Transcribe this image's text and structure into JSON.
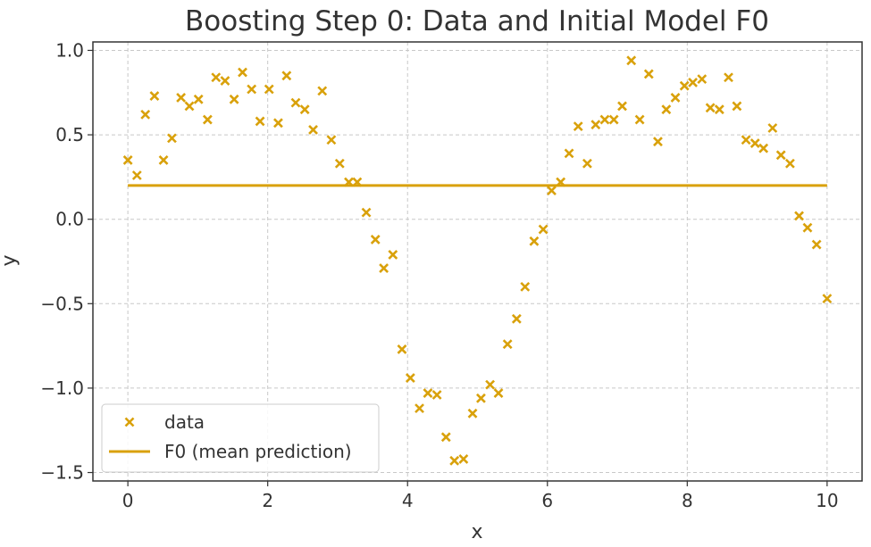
{
  "chart_data": {
    "type": "scatter",
    "title": "Boosting Step 0: Data and Initial Model F0",
    "xlabel": "x",
    "ylabel": "y",
    "xlim": [
      -0.5,
      10.5
    ],
    "ylim": [
      -1.55,
      1.05
    ],
    "xticks": [
      0,
      2,
      4,
      6,
      8,
      10
    ],
    "yticks": [
      1.0,
      0.5,
      0.0,
      -0.5,
      -1.0,
      -1.5
    ],
    "xtick_labels": [
      "0",
      "2",
      "4",
      "6",
      "8",
      "10"
    ],
    "ytick_labels": [
      "1.0",
      "0.5",
      "0.0",
      "−0.5",
      "−1.0",
      "−1.5"
    ],
    "grid": true,
    "legend_position": "lower-left",
    "series": [
      {
        "name": "data",
        "type": "scatter",
        "marker": "x",
        "color": "#d9a10b",
        "x": [
          0.0,
          0.13,
          0.25,
          0.38,
          0.51,
          0.63,
          0.76,
          0.88,
          1.01,
          1.14,
          1.26,
          1.39,
          1.52,
          1.64,
          1.77,
          1.89,
          2.02,
          2.15,
          2.27,
          2.4,
          2.53,
          2.65,
          2.78,
          2.91,
          3.03,
          3.16,
          3.28,
          3.41,
          3.54,
          3.66,
          3.79,
          3.92,
          4.04,
          4.17,
          4.29,
          4.42,
          4.55,
          4.67,
          4.8,
          4.93,
          5.05,
          5.18,
          5.3,
          5.43,
          5.56,
          5.68,
          5.81,
          5.94,
          6.06,
          6.19,
          6.31,
          6.44,
          6.57,
          6.69,
          6.82,
          6.95,
          7.07,
          7.2,
          7.32,
          7.45,
          7.58,
          7.7,
          7.83,
          7.96,
          8.08,
          8.21,
          8.33,
          8.46,
          8.59,
          8.71,
          8.84,
          8.97,
          9.09,
          9.22,
          9.34,
          9.47,
          9.6,
          9.72,
          9.85,
          10.0
        ],
        "y": [
          0.35,
          0.26,
          0.62,
          0.73,
          0.35,
          0.48,
          0.72,
          0.67,
          0.71,
          0.59,
          0.84,
          0.82,
          0.71,
          0.87,
          0.77,
          0.58,
          0.77,
          0.57,
          0.85,
          0.69,
          0.65,
          0.53,
          0.76,
          0.47,
          0.33,
          0.22,
          0.22,
          0.04,
          -0.12,
          -0.29,
          -0.21,
          -0.77,
          -0.94,
          -1.12,
          -1.03,
          -1.04,
          -1.29,
          -1.43,
          -1.42,
          -1.15,
          -1.06,
          -0.98,
          -1.03,
          -0.74,
          -0.59,
          -0.4,
          -0.13,
          -0.06,
          0.17,
          0.22,
          0.39,
          0.55,
          0.33,
          0.56,
          0.59,
          0.59,
          0.67,
          0.94,
          0.59,
          0.86,
          0.46,
          0.65,
          0.72,
          0.79,
          0.81,
          0.83,
          0.66,
          0.65,
          0.84,
          0.67,
          0.47,
          0.45,
          0.42,
          0.54,
          0.38,
          0.33,
          0.02,
          -0.05,
          -0.15,
          -0.47
        ]
      },
      {
        "name": "F0 (mean prediction)",
        "type": "line",
        "color": "#d9a10b",
        "x": [
          0,
          10
        ],
        "y": [
          0.2,
          0.2
        ]
      }
    ]
  }
}
